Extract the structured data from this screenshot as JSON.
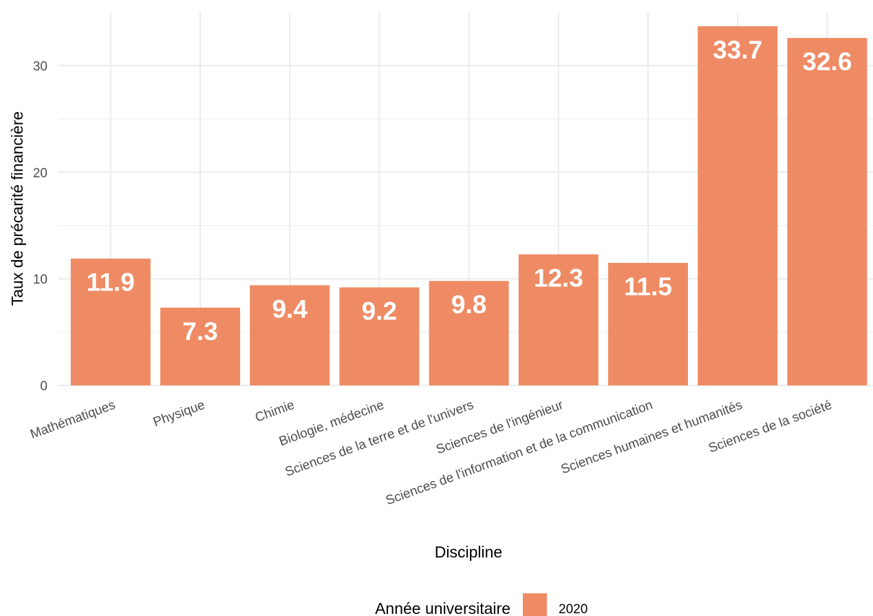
{
  "chart_data": {
    "type": "bar",
    "categories": [
      "Mathématiques",
      "Physique",
      "Chimie",
      "Biologie, médecine",
      "Sciences de la terre et de l'univers",
      "Sciences de l'ingénieur",
      "Sciences de l'information et de la communication",
      "Sciences humaines et humanités",
      "Sciences de la société"
    ],
    "series": [
      {
        "name": "2020",
        "values": [
          11.9,
          7.3,
          9.4,
          9.2,
          9.8,
          12.3,
          11.5,
          33.7,
          32.6
        ],
        "labels": [
          "11.9",
          "7.3",
          "9.4",
          "9.2",
          "9.8",
          "12.3",
          "11.5",
          "33.7",
          "32.6"
        ]
      }
    ],
    "xlabel": "Discipline",
    "ylabel": "Taux de précarité financière",
    "ylim": [
      0,
      35
    ],
    "yticks": [
      0,
      10,
      20,
      30
    ],
    "ytick_labels": [
      "0",
      "10",
      "20",
      "30"
    ],
    "grid": true,
    "legend": {
      "title": "Année universitaire",
      "position": "bottom"
    },
    "colors": {
      "bar": "#ef8b64",
      "grid": "#ebebeb",
      "bar_label": "#ffffff"
    }
  }
}
